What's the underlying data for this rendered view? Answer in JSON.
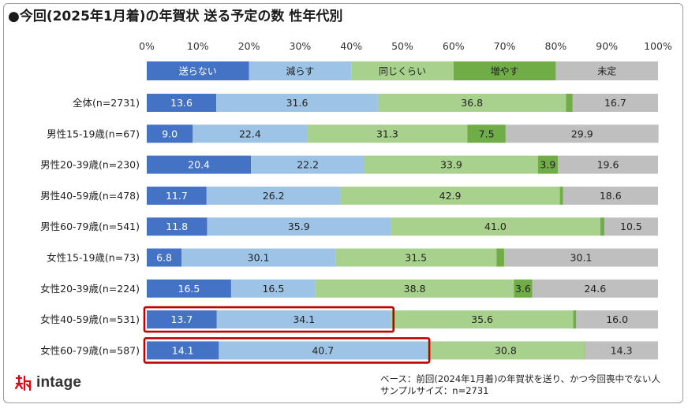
{
  "title": "●今回(2025年1月着)の年賀状 送る予定の数 性年代別",
  "chart_data": {
    "type": "stacked-bar-horizontal",
    "x_ticks": [
      "0%",
      "10%",
      "20%",
      "30%",
      "40%",
      "50%",
      "60%",
      "70%",
      "80%",
      "90%",
      "100%"
    ],
    "xlim": [
      0,
      100
    ],
    "legend": [
      {
        "label": "送らない",
        "color": "#4472c4",
        "text_color": "#ffffff"
      },
      {
        "label": "減らす",
        "color": "#9dc3e6",
        "text_color": "#222222"
      },
      {
        "label": "同じくらい",
        "color": "#a9d18e",
        "text_color": "#222222"
      },
      {
        "label": "増やす",
        "color": "#70ad47",
        "text_color": "#222222"
      },
      {
        "label": "未定",
        "color": "#bfbfbf",
        "text_color": "#222222"
      }
    ],
    "categories": [
      "全体(n=2731)",
      "男性15-19歳(n=67)",
      "男性20-39歳(n=230)",
      "男性40-59歳(n=478)",
      "男性60-79歳(n=541)",
      "女性15-19歳(n=73)",
      "女性20-39歳(n=224)",
      "女性40-59歳(n=531)",
      "女性60-79歳(n=587)"
    ],
    "values": [
      [
        13.6,
        31.6,
        36.8,
        1.3,
        16.7
      ],
      [
        9.0,
        22.4,
        31.3,
        7.5,
        29.9
      ],
      [
        20.4,
        22.2,
        33.9,
        3.9,
        19.6
      ],
      [
        11.7,
        26.2,
        42.9,
        0.6,
        18.6
      ],
      [
        11.8,
        35.9,
        41.0,
        0.8,
        10.5
      ],
      [
        6.8,
        30.1,
        31.5,
        1.5,
        30.1
      ],
      [
        16.5,
        16.5,
        38.8,
        3.6,
        24.6
      ],
      [
        13.7,
        34.1,
        35.6,
        0.6,
        16.0
      ],
      [
        14.1,
        40.7,
        30.8,
        0.1,
        14.3
      ]
    ],
    "labels": [
      [
        "13.6",
        "31.6",
        "36.8",
        "",
        "16.7"
      ],
      [
        "9.0",
        "22.4",
        "31.3",
        "7.5",
        "29.9"
      ],
      [
        "20.4",
        "22.2",
        "33.9",
        "3.9",
        "19.6"
      ],
      [
        "11.7",
        "26.2",
        "42.9",
        "",
        "18.6"
      ],
      [
        "11.8",
        "35.9",
        "41.0",
        "",
        "10.5"
      ],
      [
        "6.8",
        "30.1",
        "31.5",
        "",
        "30.1"
      ],
      [
        "16.5",
        "16.5",
        "38.8",
        "3.6",
        "24.6"
      ],
      [
        "13.7",
        "34.1",
        "35.6",
        "",
        "16.0"
      ],
      [
        "14.1",
        "40.7",
        "30.8",
        "",
        "14.3"
      ]
    ],
    "highlight": {
      "rows": [
        7,
        8
      ],
      "range": [
        0,
        2
      ],
      "color": "#c00000"
    }
  },
  "brand": {
    "name": "intage"
  },
  "footnote": {
    "line1": "ベース：前回(2024年1月着)の年賀状を送り、かつ今回喪中でない人",
    "line2": "サンプルサイズ：n=2731"
  }
}
